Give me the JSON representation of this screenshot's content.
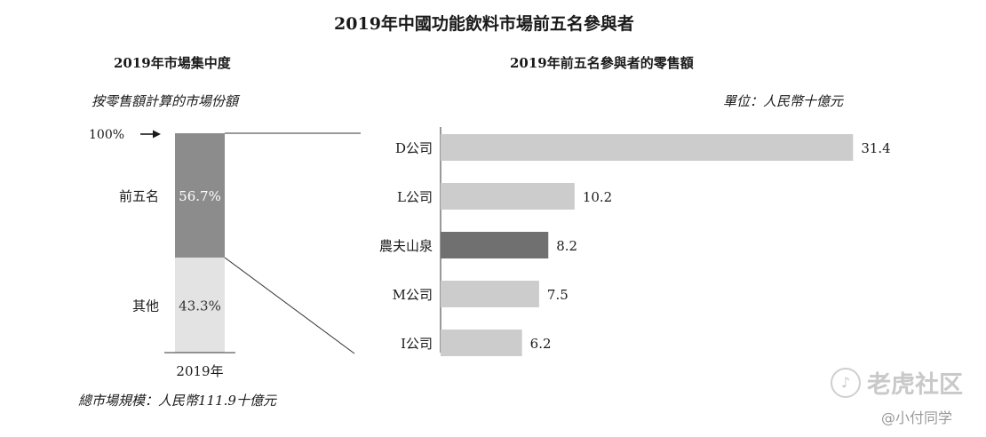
{
  "title": "2019年中國功能飲料市場前五名參與者",
  "left_panel": {
    "subtitle": "2019年市場集中度",
    "note": "按零售額計算的市場份額",
    "marker_label": "100%",
    "category_label": "2019年",
    "footer": "總市場規模：人民幣111.9十億元"
  },
  "right_panel": {
    "subtitle": "2019年前五名參與者的零售額",
    "unit_note": "單位：人民幣十億元"
  },
  "watermark": {
    "brand": "老虎社区",
    "handle": "@小付同学"
  },
  "colors": {
    "top_five": "#8c8c8c",
    "others": "#e3e3e3",
    "bar": "#cccccc",
    "bar_highlight": "#707070"
  },
  "chart_data": [
    {
      "type": "bar",
      "stacked": true,
      "title": "2019年市場集中度",
      "categories": [
        "2019年"
      ],
      "series": [
        {
          "name": "前五名",
          "values": [
            56.7
          ],
          "label": "56.7%"
        },
        {
          "name": "其他",
          "values": [
            43.3
          ],
          "label": "43.3%"
        }
      ],
      "ylim": [
        0,
        100
      ],
      "unit": "%"
    },
    {
      "type": "bar",
      "orientation": "horizontal",
      "title": "2019年前五名參與者的零售額",
      "categories": [
        "D公司",
        "L公司",
        "農夫山泉",
        "M公司",
        "I公司"
      ],
      "values": [
        31.4,
        10.2,
        8.2,
        7.5,
        6.2
      ],
      "value_labels": [
        "31.4",
        "10.2",
        "8.2",
        "7.5",
        "6.2"
      ],
      "highlight_category": "農夫山泉",
      "xlim": [
        0,
        33
      ],
      "grid": false
    }
  ]
}
